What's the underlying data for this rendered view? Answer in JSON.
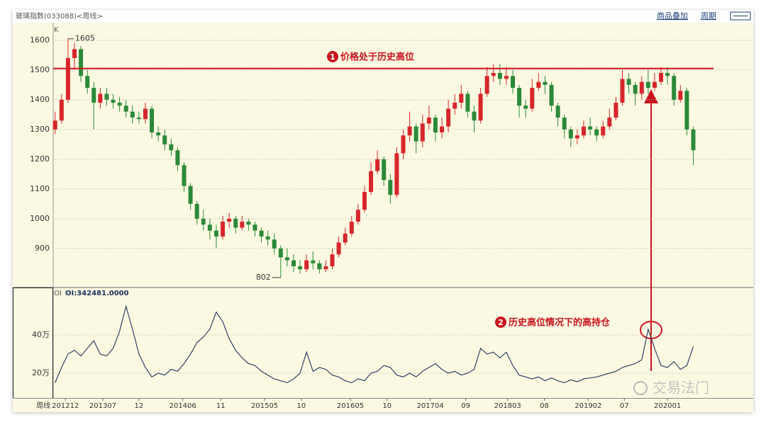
{
  "header": {
    "title": "玻璃指数(033088)<周线>",
    "links": [
      "商品叠加",
      "周期"
    ]
  },
  "chart_data": [
    {
      "type": "candlestick",
      "panel_label": "K",
      "up_color": "#d7262b",
      "down_color": "#2b8a3a",
      "xlim": [
        -0.3,
        108.3
      ],
      "ylim": [
        771,
        1652
      ],
      "yticks": [
        900,
        1000,
        1100,
        1200,
        1300,
        1400,
        1500,
        1600
      ],
      "grid": true,
      "open": [
        1300,
        1330,
        1400,
        1540,
        1570,
        1480,
        1440,
        1390,
        1420,
        1400,
        1390,
        1380,
        1360,
        1340,
        1335,
        1370,
        1290,
        1280,
        1250,
        1230,
        1180,
        1110,
        1050,
        1000,
        980,
        960,
        940,
        990,
        1000,
        970,
        990,
        980,
        960,
        940,
        930,
        900,
        870,
        860,
        840,
        830,
        860,
        850,
        830,
        840,
        880,
        920,
        950,
        990,
        1030,
        1090,
        1160,
        1200,
        1130,
        1080,
        1220,
        1280,
        1310,
        1260,
        1320,
        1340,
        1290,
        1310,
        1370,
        1390,
        1420,
        1360,
        1330,
        1420,
        1480,
        1490,
        1470,
        1480,
        1440,
        1380,
        1370,
        1440,
        1460,
        1450,
        1380,
        1340,
        1300,
        1270,
        1280,
        1310,
        1300,
        1280,
        1310,
        1340,
        1390,
        1470,
        1450,
        1420,
        1460,
        1440,
        1460,
        1490,
        1480,
        1400,
        1430,
        1300
      ],
      "high": [
        1360,
        1420,
        1605,
        1590,
        1580,
        1500,
        1460,
        1440,
        1440,
        1420,
        1410,
        1400,
        1380,
        1360,
        1390,
        1380,
        1310,
        1300,
        1270,
        1240,
        1190,
        1120,
        1060,
        1030,
        1000,
        980,
        1010,
        1020,
        1010,
        1010,
        1000,
        990,
        970,
        960,
        950,
        910,
        900,
        880,
        860,
        880,
        890,
        860,
        860,
        900,
        940,
        970,
        1010,
        1050,
        1110,
        1190,
        1230,
        1210,
        1150,
        1240,
        1300,
        1360,
        1320,
        1350,
        1380,
        1350,
        1340,
        1400,
        1420,
        1450,
        1430,
        1380,
        1440,
        1510,
        1520,
        1520,
        1510,
        1500,
        1450,
        1400,
        1470,
        1490,
        1480,
        1460,
        1390,
        1350,
        1310,
        1300,
        1330,
        1340,
        1310,
        1330,
        1370,
        1410,
        1500,
        1490,
        1460,
        1480,
        1500,
        1490,
        1510,
        1510,
        1490,
        1450,
        1440,
        1310
      ],
      "low": [
        1285,
        1320,
        1390,
        1500,
        1460,
        1420,
        1300,
        1370,
        1380,
        1370,
        1360,
        1340,
        1320,
        1320,
        1320,
        1270,
        1260,
        1230,
        1210,
        1160,
        1090,
        1030,
        980,
        960,
        930,
        900,
        930,
        970,
        950,
        960,
        960,
        940,
        920,
        910,
        880,
        802,
        840,
        820,
        815,
        820,
        830,
        815,
        820,
        830,
        870,
        910,
        940,
        980,
        1020,
        1080,
        1150,
        1110,
        1050,
        1070,
        1200,
        1260,
        1220,
        1240,
        1300,
        1260,
        1270,
        1290,
        1350,
        1370,
        1340,
        1290,
        1320,
        1410,
        1460,
        1450,
        1450,
        1420,
        1340,
        1340,
        1360,
        1430,
        1420,
        1360,
        1310,
        1270,
        1240,
        1250,
        1270,
        1280,
        1260,
        1270,
        1300,
        1330,
        1380,
        1420,
        1380,
        1400,
        1420,
        1430,
        1450,
        1450,
        1380,
        1390,
        1280,
        1180
      ],
      "close": [
        1330,
        1400,
        1540,
        1570,
        1480,
        1440,
        1390,
        1420,
        1400,
        1390,
        1380,
        1360,
        1340,
        1335,
        1370,
        1290,
        1280,
        1250,
        1230,
        1180,
        1110,
        1050,
        1000,
        980,
        960,
        940,
        990,
        1000,
        970,
        990,
        980,
        960,
        940,
        930,
        900,
        870,
        860,
        840,
        830,
        860,
        850,
        830,
        840,
        880,
        920,
        950,
        990,
        1030,
        1090,
        1160,
        1200,
        1130,
        1080,
        1220,
        1280,
        1310,
        1260,
        1320,
        1340,
        1290,
        1310,
        1370,
        1390,
        1420,
        1360,
        1330,
        1420,
        1480,
        1490,
        1470,
        1480,
        1440,
        1380,
        1370,
        1440,
        1460,
        1450,
        1380,
        1340,
        1300,
        1270,
        1280,
        1310,
        1300,
        1280,
        1310,
        1340,
        1390,
        1470,
        1450,
        1420,
        1460,
        1440,
        1460,
        1490,
        1480,
        1400,
        1430,
        1300,
        1230
      ],
      "max_label": {
        "index": 2,
        "value": 1605
      },
      "min_label": {
        "index": 35,
        "value": 802
      },
      "reference_line": {
        "value": 1505,
        "color": "#c8141e"
      },
      "annotation": {
        "number": "1",
        "text": "价格处于历史高位"
      }
    },
    {
      "type": "line",
      "panel_label": "OI",
      "readout": "OI:342481.0000",
      "xlim": [
        -0.3,
        108.3
      ],
      "ylim": [
        70000,
        645000
      ],
      "yticks": [
        {
          "value": 200000,
          "label": "20万"
        },
        {
          "value": 400000,
          "label": "40万"
        }
      ],
      "grid": true,
      "x_axis_label": "周线",
      "xticks": [
        {
          "value": 1.6,
          "label": "201212"
        },
        {
          "value": 7.4,
          "label": "201307"
        },
        {
          "value": 13,
          "label": "12"
        },
        {
          "value": 19.8,
          "label": "201406"
        },
        {
          "value": 25.7,
          "label": "11"
        },
        {
          "value": 32.5,
          "label": "201505"
        },
        {
          "value": 38.2,
          "label": "10"
        },
        {
          "value": 45.8,
          "label": "201605"
        },
        {
          "value": 51.5,
          "label": "10"
        },
        {
          "value": 58.2,
          "label": "201704"
        },
        {
          "value": 63.7,
          "label": "09"
        },
        {
          "value": 70.2,
          "label": "201803"
        },
        {
          "value": 75.9,
          "label": "08"
        },
        {
          "value": 82.7,
          "label": "201902"
        },
        {
          "value": 88.3,
          "label": "07"
        },
        {
          "value": 95,
          "label": "202001"
        }
      ],
      "series": [
        {
          "name": "OI",
          "color": "#2f4168",
          "values": [
            150000,
            230000,
            300000,
            320000,
            290000,
            330000,
            370000,
            300000,
            290000,
            330000,
            420000,
            550000,
            430000,
            300000,
            230000,
            180000,
            200000,
            190000,
            220000,
            210000,
            250000,
            300000,
            360000,
            390000,
            430000,
            520000,
            470000,
            380000,
            320000,
            280000,
            250000,
            240000,
            210000,
            190000,
            170000,
            160000,
            150000,
            170000,
            200000,
            310000,
            210000,
            230000,
            220000,
            190000,
            180000,
            160000,
            150000,
            170000,
            160000,
            200000,
            210000,
            240000,
            230000,
            190000,
            180000,
            200000,
            180000,
            210000,
            230000,
            250000,
            220000,
            200000,
            210000,
            190000,
            200000,
            220000,
            330000,
            300000,
            310000,
            280000,
            310000,
            240000,
            190000,
            180000,
            170000,
            180000,
            160000,
            175000,
            160000,
            150000,
            165000,
            155000,
            170000,
            175000,
            180000,
            190000,
            200000,
            210000,
            230000,
            240000,
            250000,
            270000,
            430000,
            330000,
            240000,
            230000,
            260000,
            220000,
            240000,
            340000
          ]
        }
      ],
      "annotation": {
        "number": "2",
        "text": "历史高位情况下的高持仓"
      }
    }
  ],
  "watermark": "交易法门"
}
